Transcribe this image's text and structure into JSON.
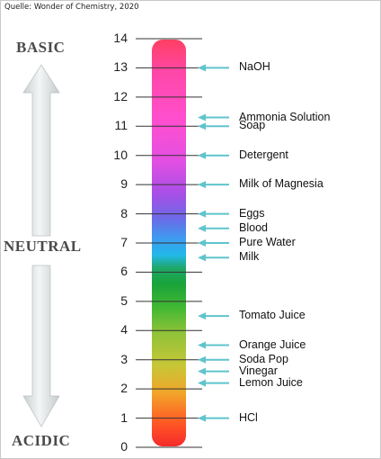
{
  "source": "Quelle: Wonder of Chemistry, 2020",
  "labels": {
    "basic": "BASIC",
    "neutral": "NEUTRAL",
    "acidic": "ACIDIC"
  },
  "scale": [
    0,
    1,
    2,
    3,
    4,
    5,
    6,
    7,
    8,
    9,
    10,
    11,
    12,
    13,
    14
  ],
  "substances": [
    {
      "name": "NaOH",
      "ph": 13
    },
    {
      "name": "Ammonia Solution",
      "ph": 11.3
    },
    {
      "name": "Soap",
      "ph": 11
    },
    {
      "name": "Detergent",
      "ph": 10
    },
    {
      "name": "Milk of Magnesia",
      "ph": 9
    },
    {
      "name": "Eggs",
      "ph": 8
    },
    {
      "name": "Blood",
      "ph": 7.5
    },
    {
      "name": "Pure Water",
      "ph": 7
    },
    {
      "name": "Milk",
      "ph": 6.5
    },
    {
      "name": "Tomato Juice",
      "ph": 4.5
    },
    {
      "name": "Orange Juice",
      "ph": 3.5
    },
    {
      "name": "Soda Pop",
      "ph": 3
    },
    {
      "name": "Vinegar",
      "ph": 2.6
    },
    {
      "name": "Lemon Juice",
      "ph": 2.2
    },
    {
      "name": "HCl",
      "ph": 1
    }
  ],
  "colors": {
    "arrow_fill": "#dfe3e4",
    "pointer": "#5fc4cc",
    "text": "#222222",
    "label": "#4a4a4a"
  }
}
